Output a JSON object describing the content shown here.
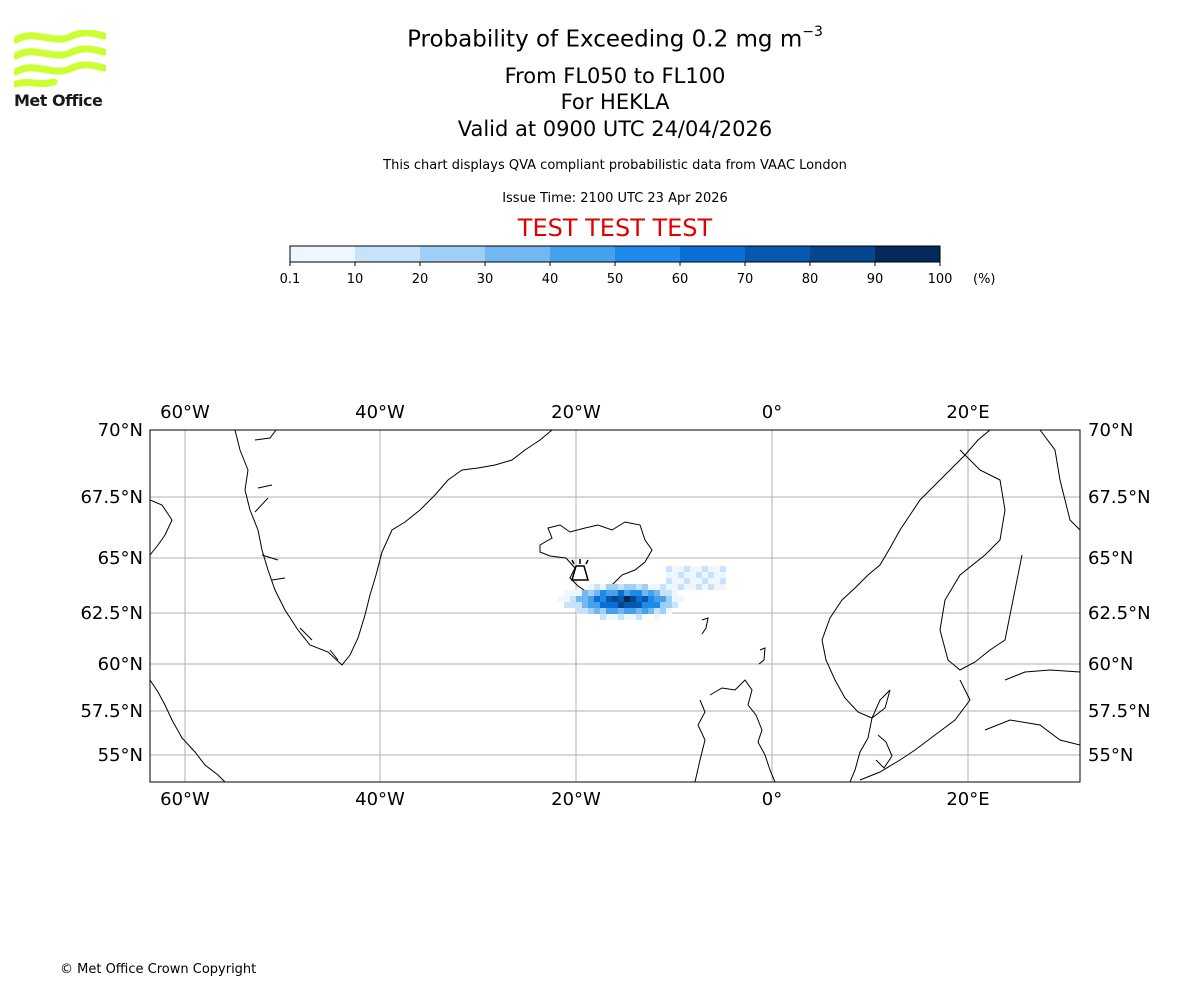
{
  "header": {
    "title_main": "Probability of Exceeding 0.2 mg m",
    "title_exponent": "−3",
    "flight_levels": "From FL050 to FL100",
    "volcano": "For HEKLA",
    "valid_time": "Valid at 0900 UTC 24/04/2026",
    "description": "This chart displays QVA compliant probabilistic data from VAAC London",
    "issue_time": "Issue Time: 2100 UTC 23 Apr 2026",
    "test_banner": "TEST TEST TEST"
  },
  "logo": {
    "text": "Met Office",
    "color": "#ccff33"
  },
  "colorbar": {
    "ticks": [
      "0.1",
      "10",
      "20",
      "30",
      "40",
      "50",
      "60",
      "70",
      "80",
      "90",
      "100"
    ],
    "unit": "(%)",
    "colors": [
      "#eef6ff",
      "#c6e3fb",
      "#9fcff6",
      "#72b7f1",
      "#45a1ec",
      "#1e8aea",
      "#0a6fd4",
      "#0759b0",
      "#04478f",
      "#032a5a"
    ]
  },
  "map": {
    "lon_labels": [
      "60°W",
      "40°W",
      "20°W",
      "0°",
      "20°E"
    ],
    "lat_labels": [
      "70°N",
      "67.5°N",
      "65°N",
      "62.5°N",
      "60°N",
      "57.5°N",
      "55°N"
    ],
    "volcano_marker": "volcano-marker"
  },
  "footer": {
    "copyright": "© Met Office Crown Copyright"
  }
}
